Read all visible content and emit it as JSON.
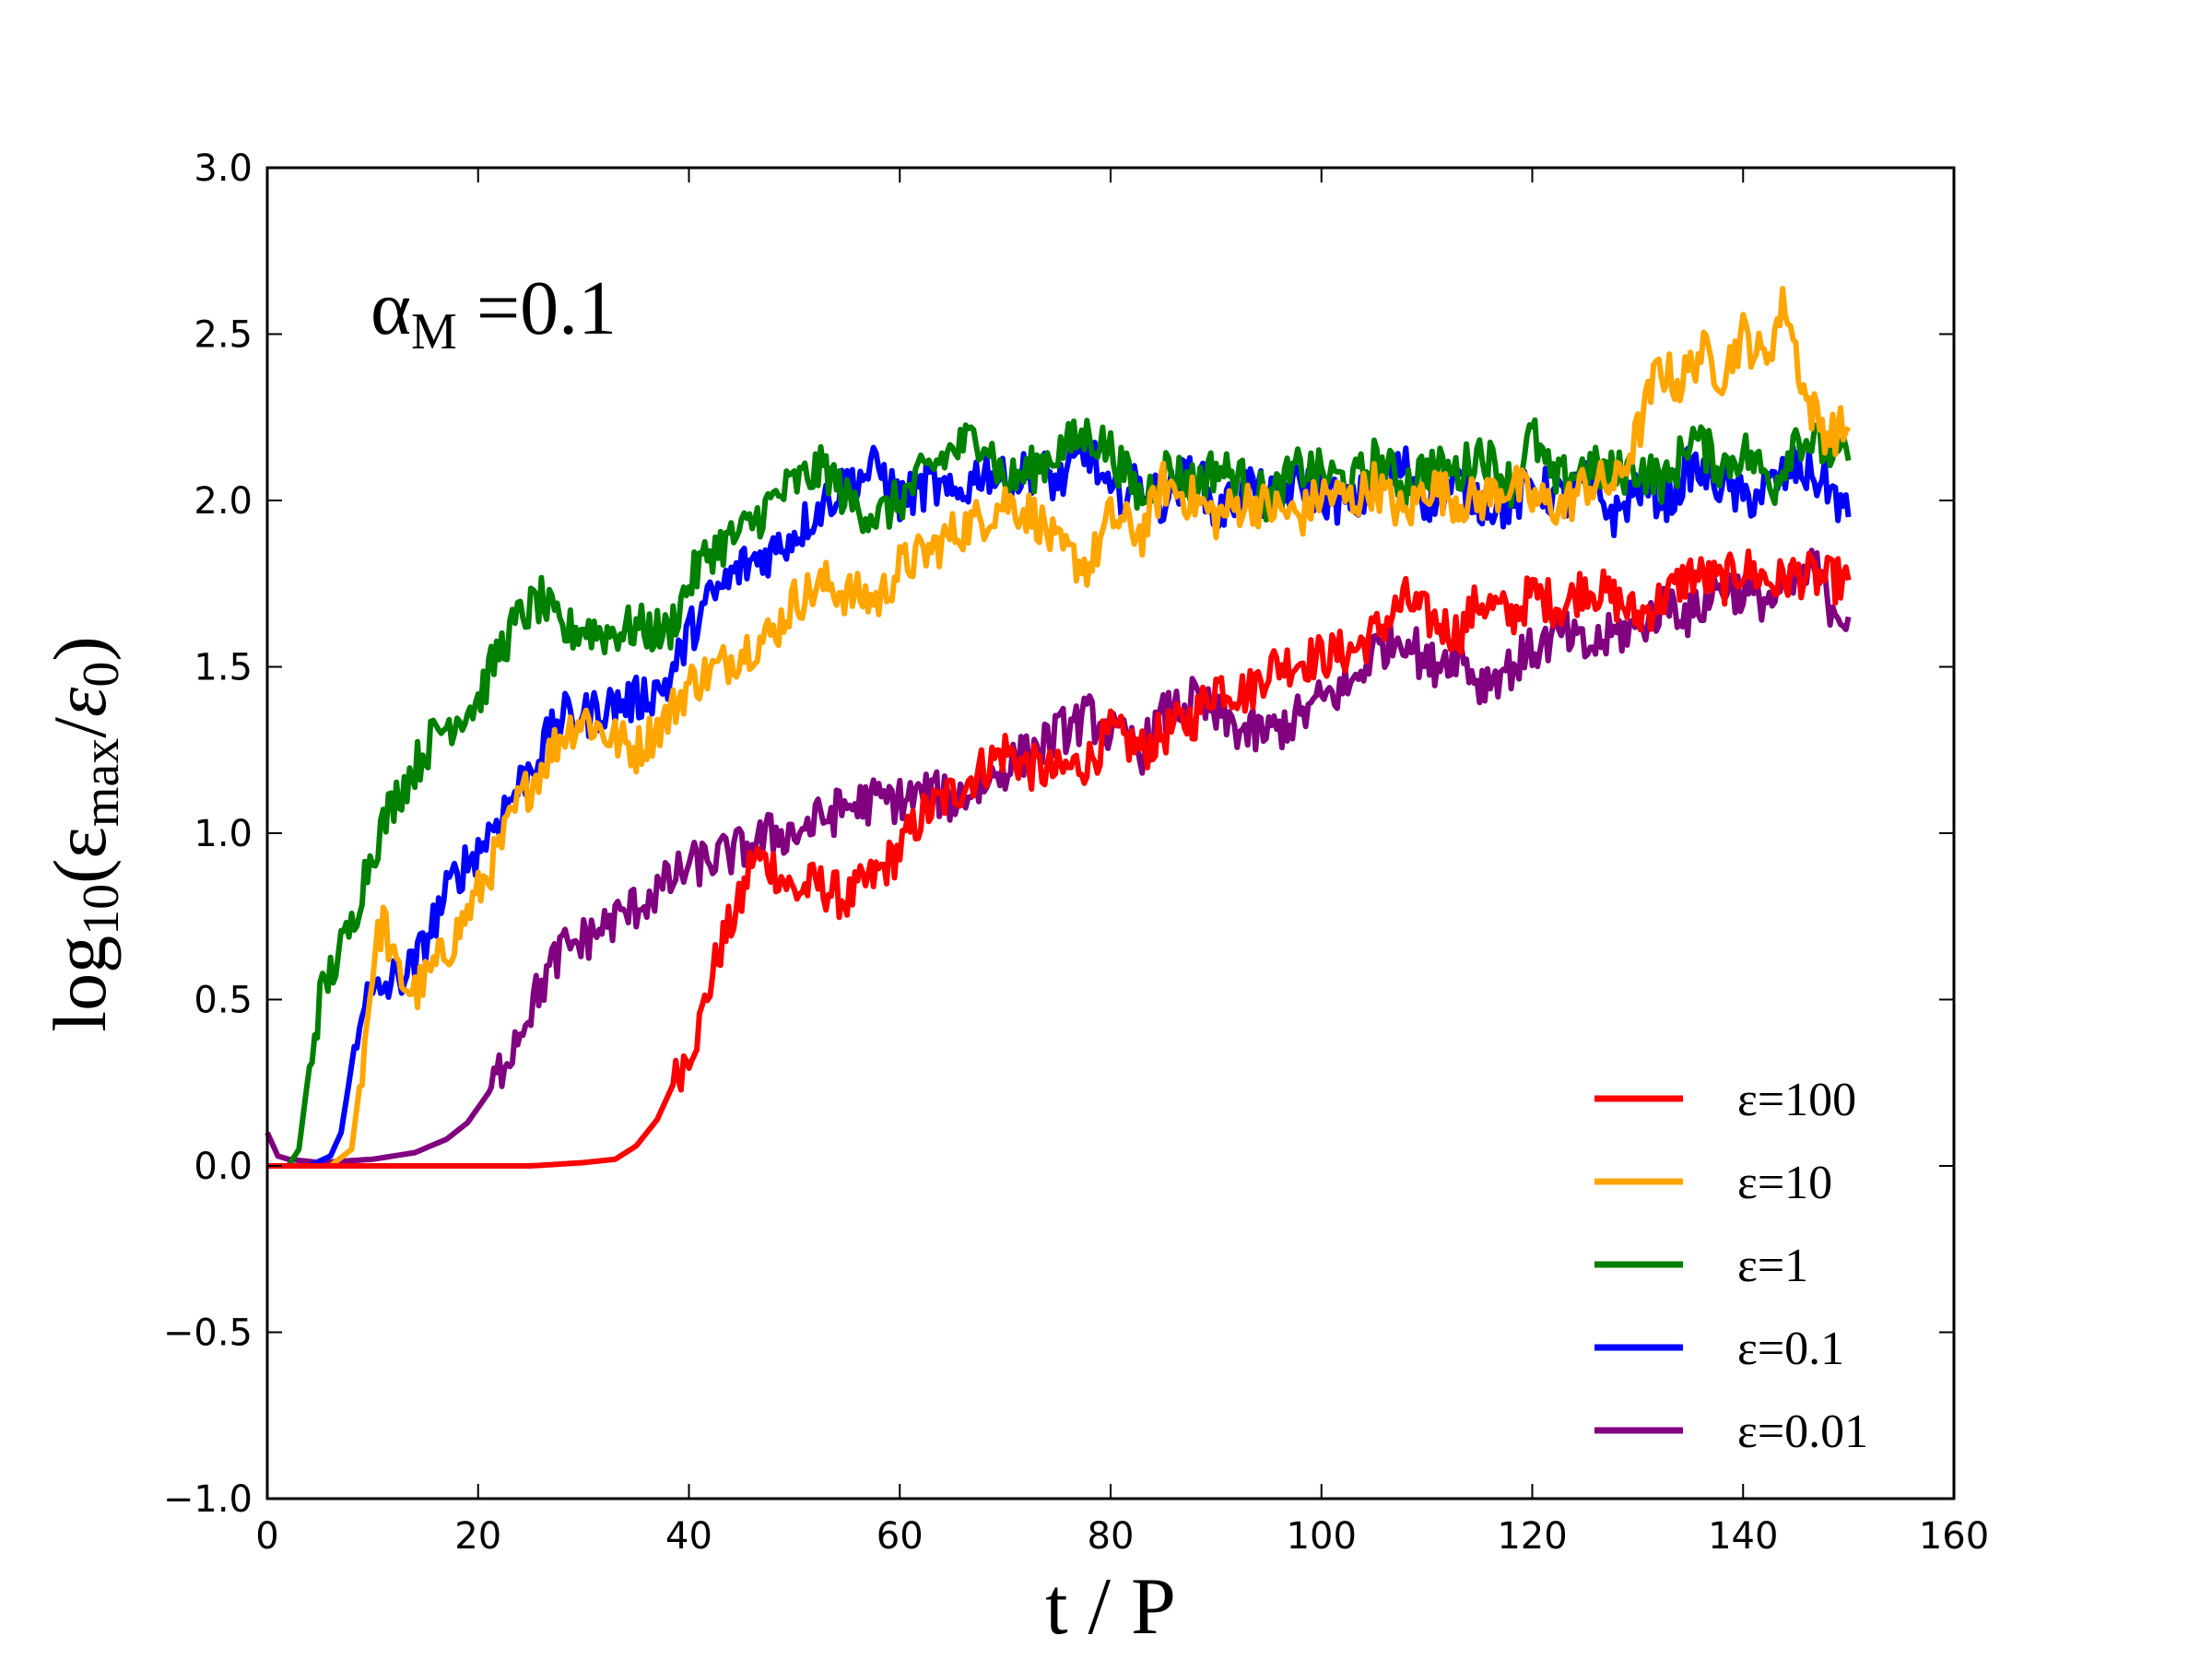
{
  "chart_data": {
    "type": "line",
    "title": "",
    "annotation": {
      "symbol": "α",
      "subscript": "M",
      "text": " =0.1"
    },
    "xlabel": "t / P",
    "ylabel": {
      "prefix": "log",
      "base": "10",
      "open": "(",
      "num": "ε",
      "num_sub": "max",
      "slash": "/",
      "den": "ε",
      "den_sub": "0",
      "close": ")"
    },
    "xlim": [
      0,
      160
    ],
    "ylim": [
      -1.0,
      3.0
    ],
    "xticks": [
      0,
      20,
      40,
      60,
      80,
      100,
      120,
      140,
      160
    ],
    "xtick_labels": [
      "0",
      "20",
      "40",
      "60",
      "80",
      "100",
      "120",
      "140",
      "160"
    ],
    "yticks": [
      -1.0,
      -0.5,
      0.0,
      0.5,
      1.0,
      1.5,
      2.0,
      2.5,
      3.0
    ],
    "ytick_labels": [
      "−1.0",
      "−0.5",
      "0.0",
      "0.5",
      "1.0",
      "1.5",
      "2.0",
      "2.5",
      "3.0"
    ],
    "grid": false,
    "legend_position": "lower-right",
    "series": [
      {
        "name": "ε=100",
        "color": "#ff0000",
        "x": [
          0,
          5,
          10,
          15,
          20,
          25,
          30,
          33,
          35,
          37,
          39,
          41,
          42,
          43,
          45,
          46,
          48,
          50,
          52,
          55,
          58,
          60,
          62,
          65,
          68,
          70,
          72,
          75,
          78,
          80,
          83,
          85,
          88,
          90,
          93,
          95,
          98,
          100,
          103,
          105,
          108,
          110,
          113,
          115,
          118,
          120,
          123,
          125,
          128,
          130,
          133,
          135,
          138,
          140,
          143,
          145,
          148,
          150
        ],
        "y": [
          0.0,
          0.0,
          0.0,
          0.0,
          0.0,
          0.0,
          0.01,
          0.02,
          0.06,
          0.14,
          0.28,
          0.42,
          0.55,
          0.66,
          0.8,
          0.93,
          0.9,
          0.82,
          0.85,
          0.8,
          0.88,
          0.95,
          1.05,
          1.12,
          1.2,
          1.25,
          1.2,
          1.18,
          1.22,
          1.3,
          1.25,
          1.3,
          1.35,
          1.45,
          1.42,
          1.5,
          1.52,
          1.53,
          1.55,
          1.6,
          1.7,
          1.65,
          1.6,
          1.7,
          1.65,
          1.72,
          1.68,
          1.75,
          1.7,
          1.65,
          1.72,
          1.78,
          1.75,
          1.8,
          1.75,
          1.78,
          1.76,
          1.76
        ]
      },
      {
        "name": "ε=10",
        "color": "#ffa500",
        "x": [
          0,
          3,
          6,
          8,
          9,
          10,
          11,
          12,
          13,
          14,
          16,
          18,
          20,
          22,
          24,
          26,
          28,
          30,
          32,
          35,
          38,
          40,
          43,
          45,
          48,
          50,
          53,
          55,
          58,
          60,
          63,
          65,
          68,
          70,
          73,
          75,
          78,
          80,
          83,
          85,
          88,
          90,
          93,
          95,
          98,
          100,
          103,
          105,
          108,
          110,
          113,
          115,
          118,
          120,
          123,
          125,
          128,
          130,
          132,
          134,
          136,
          138,
          140,
          142,
          144,
          146,
          148,
          150
        ],
        "y": [
          0.0,
          0.0,
          0.0,
          0.05,
          0.3,
          0.6,
          0.75,
          0.6,
          0.55,
          0.52,
          0.6,
          0.7,
          0.82,
          0.95,
          1.1,
          1.2,
          1.3,
          1.35,
          1.3,
          1.25,
          1.35,
          1.45,
          1.5,
          1.55,
          1.6,
          1.7,
          1.75,
          1.72,
          1.7,
          1.8,
          1.85,
          1.9,
          1.95,
          2.0,
          1.95,
          1.85,
          1.8,
          1.95,
          1.9,
          2.05,
          2.0,
          1.95,
          2.0,
          1.98,
          1.95,
          2.02,
          2.0,
          2.05,
          1.95,
          2.05,
          2.0,
          2.0,
          2.05,
          2.0,
          1.98,
          2.05,
          2.05,
          2.2,
          2.4,
          2.35,
          2.45,
          2.38,
          2.5,
          2.42,
          2.6,
          2.3,
          2.2,
          2.22
        ]
      },
      {
        "name": "ε=1",
        "color": "#008000",
        "x": [
          0,
          2,
          3,
          4,
          5,
          6,
          7,
          8,
          9,
          10,
          12,
          14,
          16,
          18,
          20,
          22,
          24,
          26,
          28,
          30,
          32,
          35,
          38,
          40,
          42,
          45,
          48,
          50,
          53,
          55,
          58,
          60,
          63,
          65,
          68,
          70,
          73,
          75,
          78,
          80,
          83,
          85,
          88,
          90,
          93,
          95,
          98,
          100,
          103,
          105,
          108,
          110,
          113,
          115,
          118,
          120,
          122,
          125,
          128,
          130,
          133,
          135,
          138,
          140,
          143,
          145,
          148,
          150
        ],
        "y": [
          0.0,
          0.0,
          0.05,
          0.3,
          0.5,
          0.58,
          0.65,
          0.72,
          0.85,
          0.95,
          1.1,
          1.2,
          1.3,
          1.35,
          1.4,
          1.55,
          1.65,
          1.7,
          1.6,
          1.62,
          1.6,
          1.62,
          1.6,
          1.75,
          1.85,
          1.9,
          2.0,
          2.05,
          2.1,
          2.0,
          1.95,
          2.0,
          2.1,
          2.15,
          2.2,
          2.05,
          2.1,
          2.15,
          2.2,
          2.15,
          2.0,
          2.1,
          2.05,
          2.1,
          2.05,
          2.0,
          2.1,
          2.08,
          2.05,
          2.12,
          2.05,
          2.1,
          2.08,
          2.15,
          2.05,
          2.2,
          2.05,
          2.1,
          2.08,
          2.1,
          2.05,
          2.2,
          2.1,
          2.15,
          2.05,
          2.2,
          2.15,
          2.12
        ]
      },
      {
        "name": "ε=0.1",
        "color": "#0000ff",
        "x": [
          0,
          4,
          6,
          7,
          8,
          9,
          10,
          11,
          12,
          14,
          16,
          18,
          20,
          22,
          24,
          26,
          28,
          30,
          32,
          35,
          38,
          40,
          42,
          45,
          48,
          50,
          53,
          55,
          58,
          60,
          63,
          65,
          68,
          70,
          73,
          75,
          78,
          80,
          83,
          85,
          88,
          90,
          93,
          95,
          98,
          100,
          103,
          105,
          108,
          110,
          113,
          115,
          118,
          120,
          123,
          125,
          128,
          130,
          133,
          135,
          138,
          140,
          143,
          145,
          148,
          150
        ],
        "y": [
          0.0,
          0.0,
          0.03,
          0.1,
          0.3,
          0.5,
          0.5,
          0.53,
          0.56,
          0.6,
          0.75,
          0.88,
          0.95,
          1.05,
          1.15,
          1.25,
          1.35,
          1.35,
          1.38,
          1.4,
          1.45,
          1.6,
          1.7,
          1.8,
          1.85,
          1.9,
          2.0,
          2.05,
          2.1,
          2.0,
          2.05,
          2.0,
          2.1,
          2.05,
          2.1,
          2.05,
          2.15,
          2.0,
          2.05,
          2.0,
          2.1,
          1.95,
          2.05,
          2.0,
          2.05,
          2.02,
          1.98,
          2.05,
          2.1,
          2.0,
          2.05,
          2.0,
          1.98,
          2.05,
          2.0,
          2.05,
          1.95,
          2.05,
          2.0,
          2.1,
          2.05,
          2.0,
          2.05,
          2.1,
          2.05,
          1.95
        ]
      },
      {
        "name": "ε=0.01",
        "color": "#800080",
        "x": [
          0,
          1,
          2,
          5,
          10,
          14,
          17,
          19,
          21,
          23,
          25,
          27,
          28,
          30,
          32,
          35,
          38,
          40,
          42,
          45,
          48,
          50,
          53,
          55,
          58,
          60,
          63,
          65,
          68,
          70,
          73,
          75,
          78,
          80,
          83,
          85,
          88,
          90,
          93,
          95,
          98,
          100,
          103,
          105,
          108,
          110,
          113,
          115,
          118,
          120,
          123,
          125,
          128,
          130,
          133,
          135,
          138,
          140,
          143,
          145,
          147,
          148,
          150
        ],
        "y": [
          0.1,
          0.03,
          0.02,
          0.01,
          0.02,
          0.04,
          0.08,
          0.13,
          0.22,
          0.35,
          0.48,
          0.6,
          0.65,
          0.68,
          0.72,
          0.78,
          0.85,
          0.9,
          0.92,
          0.95,
          1.0,
          1.0,
          1.05,
          1.08,
          1.1,
          1.1,
          1.12,
          1.1,
          1.15,
          1.2,
          1.25,
          1.3,
          1.35,
          1.3,
          1.25,
          1.35,
          1.4,
          1.35,
          1.3,
          1.3,
          1.35,
          1.4,
          1.45,
          1.55,
          1.6,
          1.5,
          1.55,
          1.45,
          1.5,
          1.55,
          1.6,
          1.55,
          1.6,
          1.62,
          1.7,
          1.65,
          1.75,
          1.72,
          1.7,
          1.75,
          1.8,
          1.7,
          1.65
        ]
      }
    ]
  }
}
